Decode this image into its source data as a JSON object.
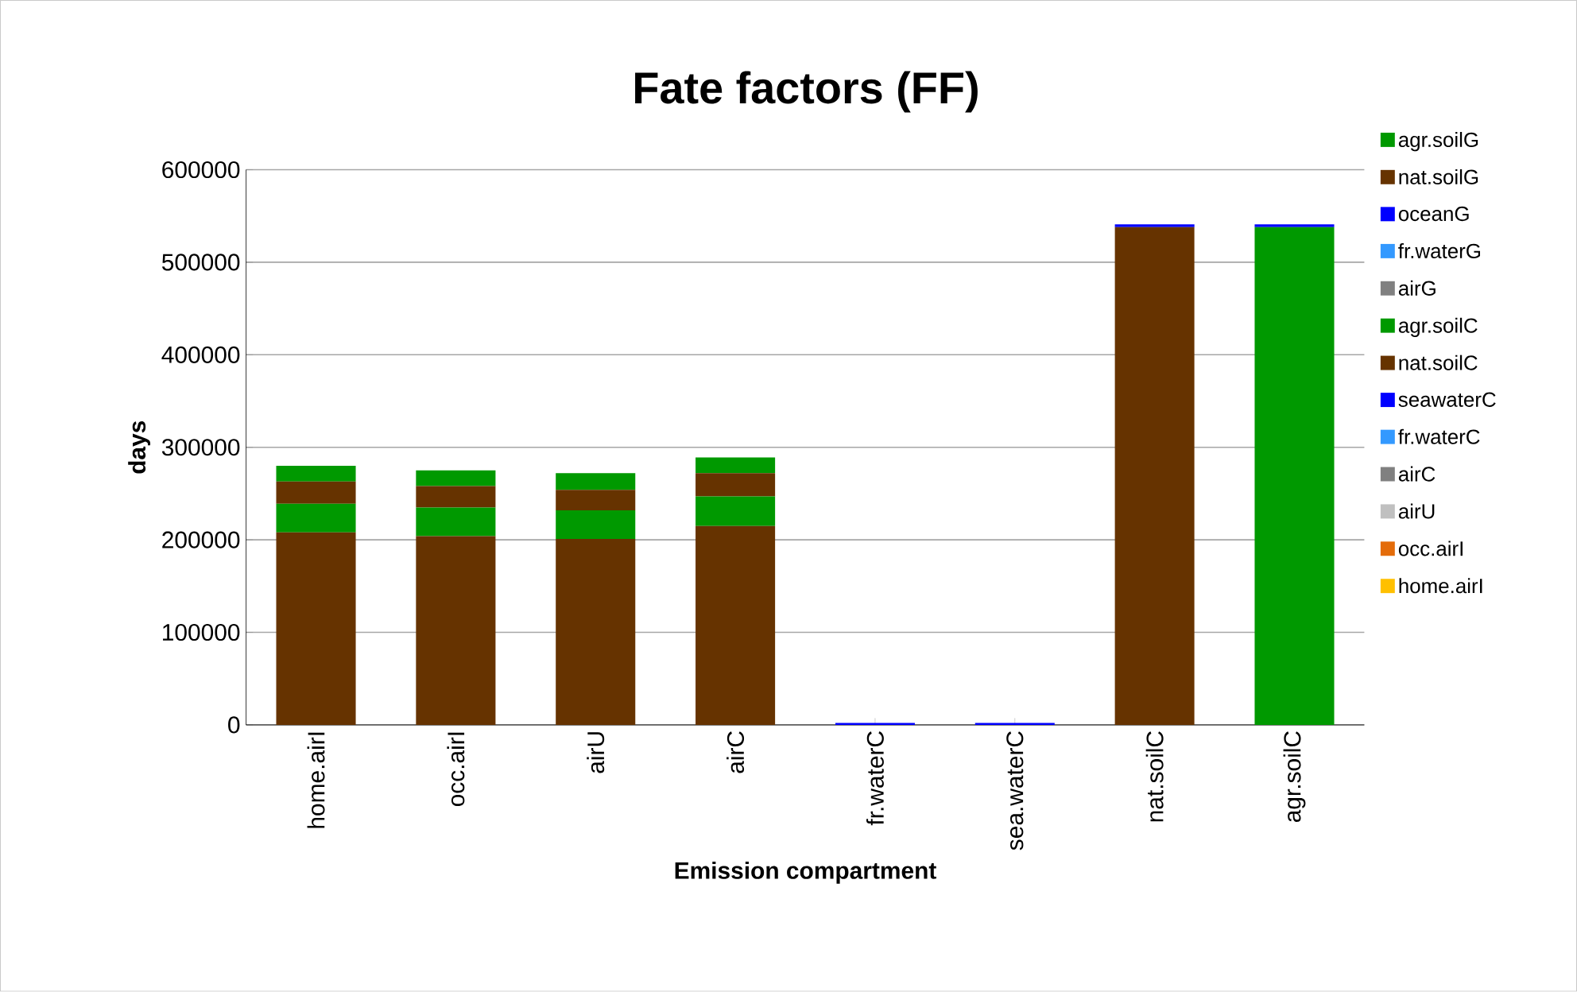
{
  "chart_data": {
    "type": "bar",
    "title": "Fate factors (FF)",
    "xlabel": "Emission compartment",
    "ylabel": "days",
    "categories": [
      "home.airI",
      "occ.airI",
      "airU",
      "airC",
      "fr.waterC",
      "sea.waterC",
      "nat.soilC",
      "agr.soilC"
    ],
    "stacked": true,
    "ylim": [
      0,
      600000
    ],
    "yticks": [
      0,
      100000,
      200000,
      300000,
      400000,
      500000,
      600000
    ],
    "grid": "y",
    "legend": "right",
    "series": [
      {
        "name": "home.airI",
        "color": "#ffc000",
        "values": [
          null,
          null,
          null,
          null,
          null,
          null,
          null,
          null
        ]
      },
      {
        "name": "occ.airI",
        "color": "#e46c0a",
        "values": [
          null,
          null,
          null,
          null,
          null,
          null,
          null,
          null
        ]
      },
      {
        "name": "airU",
        "color": "#c0c0c0",
        "values": [
          null,
          null,
          null,
          null,
          null,
          null,
          null,
          null
        ]
      },
      {
        "name": "airC",
        "color": "#808080",
        "values": [
          null,
          null,
          null,
          null,
          null,
          null,
          null,
          null
        ]
      },
      {
        "name": "fr.waterC",
        "color": "#3399ff",
        "values": [
          null,
          null,
          null,
          null,
          null,
          null,
          null,
          null
        ]
      },
      {
        "name": "seawaterC",
        "color": "#0000ff",
        "values": [
          null,
          null,
          null,
          null,
          2000,
          2000,
          null,
          null
        ]
      },
      {
        "name": "nat.soilC",
        "color": "#663300",
        "values": [
          208000,
          204000,
          201000,
          215000,
          null,
          null,
          538000,
          null
        ]
      },
      {
        "name": "agr.soilC",
        "color": "#009900",
        "values": [
          31000,
          31000,
          31000,
          32000,
          null,
          null,
          null,
          538000
        ]
      },
      {
        "name": "airG",
        "color": "#808080",
        "values": [
          null,
          null,
          null,
          null,
          null,
          null,
          null,
          null
        ]
      },
      {
        "name": "fr.waterG",
        "color": "#3399ff",
        "values": [
          null,
          null,
          null,
          null,
          null,
          null,
          null,
          null
        ]
      },
      {
        "name": "oceanG",
        "color": "#0000ff",
        "values": [
          null,
          null,
          null,
          null,
          null,
          null,
          3000,
          3000
        ]
      },
      {
        "name": "nat.soilG",
        "color": "#663300",
        "values": [
          24000,
          23000,
          22000,
          25000,
          null,
          null,
          null,
          null
        ]
      },
      {
        "name": "agr.soilG",
        "color": "#009900",
        "values": [
          17000,
          17000,
          18000,
          17000,
          null,
          null,
          null,
          null
        ]
      }
    ]
  }
}
